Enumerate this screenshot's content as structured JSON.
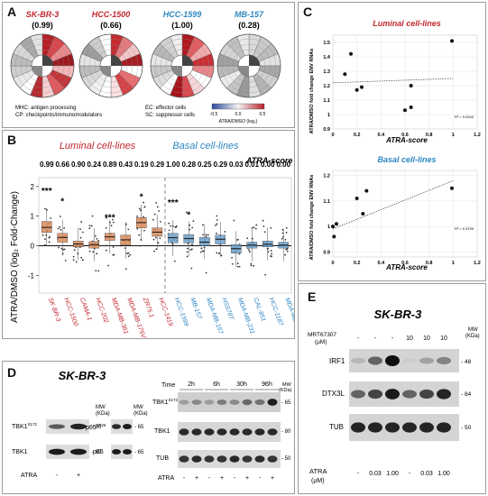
{
  "panels": {
    "A": "A",
    "B": "B",
    "C": "C",
    "D": "D",
    "E": "E"
  },
  "panelA": {
    "cells": [
      {
        "name": "SK-BR-3",
        "score": "(0.99)"
      },
      {
        "name": "HCC-1500",
        "score": "(0.66)"
      },
      {
        "name": "HCC-1599",
        "score": "(1.00)"
      },
      {
        "name": "MB-157",
        "score": "(0.28)"
      }
    ],
    "legend_left": [
      "MHC: antigen processing",
      "CP: checkpoints/immunomodulators"
    ],
    "legend_mid": [
      "EC: effector cells",
      "SC: suppressor cells"
    ],
    "colorbar_ticks": [
      "-0.5",
      "0.0",
      "0.5"
    ],
    "colorbar_label": "ATRA/DMSO (log₂)",
    "colors": {
      "luminal": "#c1272d",
      "basal": "#2e86c1"
    }
  },
  "panelB": {
    "group_luminal": "Luminal cell-lines",
    "group_basal": "Basal cell-lines",
    "score_title": "ATRA-score",
    "ylabel": "ATRA/DMSO (log₂ Fold-Change)",
    "yticks": [
      "2",
      "1",
      "0",
      "-1"
    ],
    "scores": [
      "0.99",
      "0.66",
      "0.90",
      "0.24",
      "0.89",
      "0.43",
      "0.19",
      "0.29",
      "1.00",
      "0.28",
      "0.25",
      "0.29",
      "0.03",
      "0.01",
      "0.00",
      "0.00"
    ],
    "sig_labels": [
      {
        "text": "***",
        "idx": 0,
        "y": 1.75
      },
      {
        "text": "*",
        "idx": 1,
        "y": 1.4
      },
      {
        "text": "***",
        "idx": 4,
        "y": 0.85
      },
      {
        "text": "*",
        "idx": 6,
        "y": 1.55
      },
      {
        "text": "***",
        "idx": 8,
        "y": 1.35
      },
      {
        "text": "*",
        "idx": 9,
        "y": 0.95
      }
    ]
  },
  "chart_data": {
    "type": "box",
    "title": "",
    "ylabel": "ATRA/DMSO (log₂ Fold-Change)",
    "ylim": [
      -1.6,
      2.3
    ],
    "categories": [
      "SK-BR-3",
      "HCC-1500",
      "CAMA-1",
      "HCC-202",
      "MDA-MB-361",
      "MDA-MB-175VII",
      "ZR75.1",
      "HCC-1419",
      "HCC-1599",
      "MB-157",
      "MDA-MB-157",
      "HS578T",
      "MDA-MB-231",
      "CAL-851",
      "HCC-1187",
      "MDA-MB-436"
    ],
    "groups": [
      "luminal",
      "luminal",
      "luminal",
      "luminal",
      "luminal",
      "luminal",
      "luminal",
      "luminal",
      "basal",
      "basal",
      "basal",
      "basal",
      "basal",
      "basal",
      "basal",
      "basal"
    ],
    "medians": [
      0.62,
      0.28,
      0.06,
      0.04,
      0.3,
      0.2,
      0.78,
      0.46,
      0.27,
      0.24,
      0.12,
      0.22,
      -0.1,
      0.02,
      0.05,
      0.02
    ],
    "q1": [
      0.45,
      0.12,
      -0.04,
      -0.08,
      0.18,
      0.02,
      0.6,
      0.32,
      0.1,
      0.1,
      0.0,
      0.06,
      -0.25,
      -0.08,
      -0.04,
      -0.08
    ],
    "q3": [
      0.82,
      0.42,
      0.16,
      0.14,
      0.42,
      0.36,
      0.95,
      0.6,
      0.42,
      0.38,
      0.28,
      0.36,
      0.04,
      0.12,
      0.16,
      0.12
    ]
  },
  "panelC": {
    "letter": "C",
    "charts": [
      {
        "title": "Luminal cell-lines",
        "ylabel": "ATRA/DMSO fold change ENV RNAs",
        "xlabel": "ATRA-score",
        "r2": "R² = 0.0043",
        "yticks": [
          "1.5",
          "1.4",
          "1.3",
          "1.2",
          "1.1",
          "1",
          "0.9"
        ],
        "xticks": [
          "0",
          "0.2",
          "0.4",
          "0.6",
          "0.8",
          "1",
          "1.2"
        ],
        "ylim": [
          0.9,
          1.55
        ],
        "xlim": [
          0,
          1.2
        ],
        "points": [
          [
            0.1,
            1.28
          ],
          [
            0.15,
            1.42
          ],
          [
            0.2,
            1.17
          ],
          [
            0.24,
            1.19
          ],
          [
            0.6,
            1.03
          ],
          [
            0.65,
            1.2
          ],
          [
            0.65,
            1.05
          ],
          [
            0.99,
            1.51
          ]
        ],
        "fit": [
          [
            0,
            1.22
          ],
          [
            1.0,
            1.25
          ]
        ]
      },
      {
        "title": "Basal cell-lines",
        "ylabel": "ATRA/DMSO fold change ENV RNAs",
        "xlabel": "ATRA-score",
        "r2": "R² = 0.3799",
        "yticks": [
          "1.2",
          "1.1",
          "1",
          "0.9"
        ],
        "xticks": [
          "0",
          "0.2",
          "0.4",
          "0.6",
          "0.8",
          "1",
          "1.2"
        ],
        "ylim": [
          0.88,
          1.22
        ],
        "xlim": [
          0,
          1.2
        ],
        "points": [
          [
            0.0,
            1.0
          ],
          [
            0.01,
            0.96
          ],
          [
            0.03,
            1.01
          ],
          [
            0.2,
            1.11
          ],
          [
            0.25,
            1.05
          ],
          [
            0.28,
            1.14
          ],
          [
            0.99,
            1.15
          ]
        ],
        "fit": [
          [
            0,
            0.99
          ],
          [
            1.0,
            1.18
          ]
        ]
      }
    ]
  },
  "panelD": {
    "title": "SK-BR-3",
    "mw_header": "MW\n(KDa)",
    "left_blots": [
      {
        "label": "TBK1",
        "sup": "S172",
        "mw": "- 80"
      },
      {
        "label": "TBK1",
        "sup": "",
        "mw": "- 80"
      }
    ],
    "mid_blots": [
      {
        "label": "p65",
        "sup": "S536",
        "mw": "- 65"
      },
      {
        "label": "p65",
        "sup": "",
        "mw": "- 65"
      }
    ],
    "atra_label": "ATRA",
    "atra_two": [
      "-",
      "+"
    ],
    "time_label": "Time",
    "times": [
      "2h",
      "6h",
      "30h",
      "96h"
    ],
    "right_blots": [
      {
        "label": "TBK1",
        "sup": "S172",
        "mw": "- 65"
      },
      {
        "label": "TBK1",
        "sup": "",
        "mw": "- 80"
      },
      {
        "label": "TUB",
        "sup": "",
        "mw": "- 50"
      }
    ],
    "atra_eight": [
      "-",
      "+",
      "-",
      "+",
      "-",
      "+",
      "-",
      "+"
    ]
  },
  "panelE": {
    "title": "SK-BR-3",
    "inhibitor": "MRT67307",
    "inhibitor_unit": "(µM)",
    "inhibitor_values": [
      "-",
      "-",
      "-",
      "10",
      "10",
      "10"
    ],
    "mw_header": "MW\n(KDa)",
    "blots": [
      {
        "label": "IRF1",
        "mw": "- 48"
      },
      {
        "label": "DTX3L",
        "mw": "- 84"
      },
      {
        "label": "TUB",
        "mw": "- 50"
      }
    ],
    "atra_label": "ATRA",
    "atra_unit": "(µM)",
    "atra_values": [
      "-",
      "0.03",
      "1.00",
      "-",
      "0.03",
      "1.00"
    ]
  }
}
